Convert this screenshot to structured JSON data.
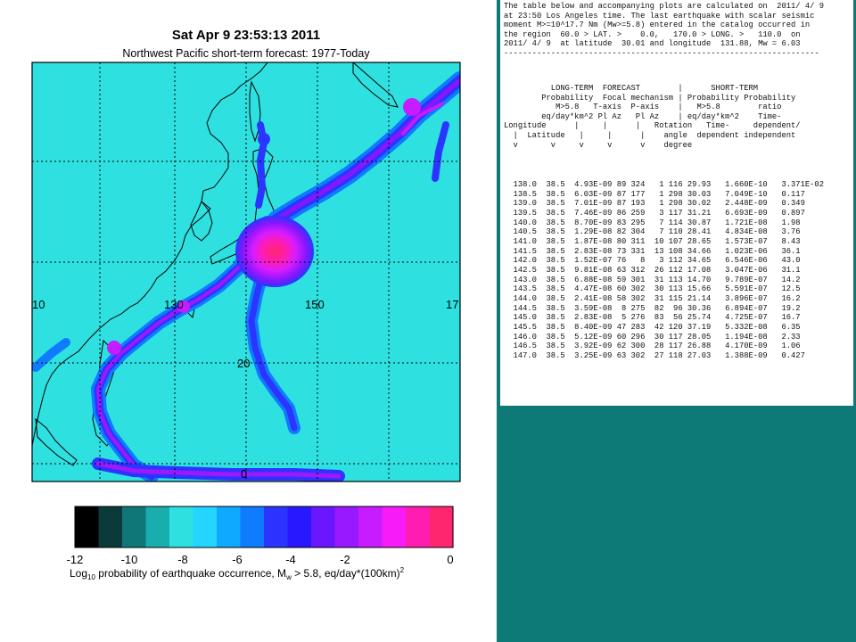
{
  "map": {
    "title": "Sat Apr  9 23:53:13 2011",
    "subtitle": "Northwest Pacific short-term forecast: 1977-Today",
    "lon_labels": [
      "10",
      "130",
      "150",
      "17"
    ],
    "lat_labels": [
      "20",
      "0"
    ]
  },
  "colorbar": {
    "ticks": [
      "-12",
      "-10",
      "-8",
      "-6",
      "-4",
      "-2",
      "0"
    ],
    "label_prefix": "Log",
    "label_sub": "10",
    "label_mid": " probability of earthquake occurrence, M",
    "label_w": "w",
    "label_post": " > 5.8, eq/day*(100km)",
    "label_sup": "2",
    "colors": [
      "#000000",
      "#0a3a3a",
      "#0f7777",
      "#19aeae",
      "#2ee0e0",
      "#22d6ff",
      "#0eaaff",
      "#0f7bff",
      "#2b35ff",
      "#2818ff",
      "#6a16ff",
      "#9818ff",
      "#c61cff",
      "#f71cf7",
      "#ff1cb0",
      "#ff2670"
    ]
  },
  "panel": {
    "intro": [
      "The table below and accompanying plots are calculated on  2011/ 4/ 9",
      "at 23:50 Los Angeles time. The last earthquake with scalar seismic",
      "moment M>=10^17.7 Nm (Mw>=5.8) entered in the catalog occurred in",
      "the region  60.0 > LAT. >    0.0,   170.0 > LONG. >   110.0  on",
      "2011/ 4/ 9  at latitude  30.01 and longitude  131.88, Mw = 6.03"
    ],
    "divider": "-------------------------------------------------------------------",
    "header": [
      "          LONG-TERM  FORECAST        |      SHORT-TERM",
      "        Probability  Focal mechanism | Probability Probability",
      "           M>5.8   T-axis  P-axis    |   M>5.8        ratio",
      "        eq/day*km^2 Pl Az   Pl Az    | eq/day*km^2    Time-",
      "Longitude      |     |      |   Rotation   Time-     dependent/",
      "  |  Latitude   |     |      |    angle  dependent independent",
      "  v       v     v     v      v    degree"
    ],
    "rows": [
      "  138.0  38.5  4.93E-09 89 324   1 116 29.93   1.660E-10   3.371E-02",
      "  138.5  38.5  6.03E-09 87 177   1 298 30.03   7.049E-10   0.117",
      "  139.0  38.5  7.01E-09 87 193   1 298 30.02   2.448E-09   0.349",
      "  139.5  38.5  7.46E-09 86 259   3 117 31.21   6.693E-09   0.897",
      "  140.0  38.5  8.70E-09 83 295   7 114 30.87   1.721E-08   1.98",
      "  140.5  38.5  1.29E-08 82 304   7 110 28.41   4.834E-08   3.76",
      "  141.0  38.5  1.87E-08 80 311  10 107 28.65   1.573E-07   8.43",
      "  141.5  38.5  2.83E-08 73 331  13 108 34.66   1.023E-06   36.1",
      "  142.0  38.5  1.52E-07 76   8   3 112 34.65   6.546E-06   43.0",
      "  142.5  38.5  9.81E-08 63 312  26 112 17.08   3.047E-06   31.1",
      "  143.0  38.5  6.88E-08 59 301  31 113 14.70   9.789E-07   14.2",
      "  143.5  38.5  4.47E-08 60 302  30 113 15.66   5.591E-07   12.5",
      "  144.0  38.5  2.41E-08 58 302  31 115 21.14   3.896E-07   16.2",
      "  144.5  38.5  3.59E-08  8 275  82  96 30.36   6.894E-07   19.2",
      "  145.0  38.5  2.83E-08  5 276  83  56 25.74   4.725E-07   16.7",
      "  145.5  38.5  8.40E-09 47 283  42 120 37.19   5.332E-08   6.35",
      "  146.0  38.5  5.12E-09 60 296  30 117 28.05   1.194E-08   2.33",
      "  146.5  38.5  3.92E-09 62 300  28 117 26.88   4.170E-09   1.06",
      "  147.0  38.5  3.25E-09 63 302  27 118 27.03   1.388E-09   0.427"
    ]
  }
}
